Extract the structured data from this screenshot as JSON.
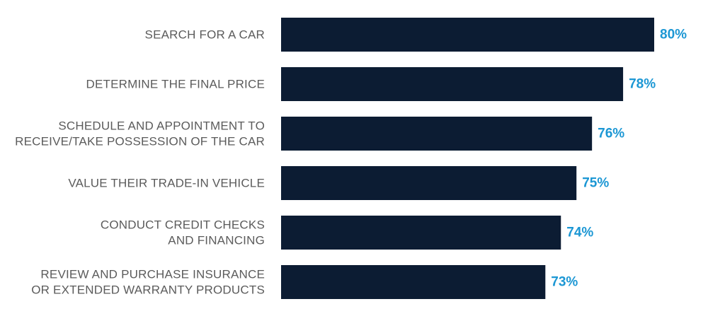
{
  "colors": {
    "bar": "#0c1c33",
    "value_label": "#1c97d4",
    "category_label": "#5b5b5b",
    "background": "#ffffff"
  },
  "chart_data": {
    "type": "bar",
    "orientation": "horizontal",
    "categories": [
      [
        "SEARCH FOR A CAR"
      ],
      [
        "DETERMINE THE FINAL PRICE"
      ],
      [
        "SCHEDULE AND APPOINTMENT TO",
        "RECEIVE/TAKE POSSESSION OF THE CAR"
      ],
      [
        "VALUE THEIR TRADE-IN VEHICLE"
      ],
      [
        "CONDUCT CREDIT CHECKS",
        "AND FINANCING"
      ],
      [
        "REVIEW AND PURCHASE INSURANCE",
        "OR EXTENDED WARRANTY PRODUCTS"
      ]
    ],
    "values": [
      80,
      78,
      76,
      75,
      74,
      73
    ],
    "value_labels": [
      "80%",
      "78%",
      "76%",
      "75%",
      "74%",
      "73%"
    ],
    "unit": "%",
    "xlim": [
      56,
      80
    ],
    "grid": false,
    "legend": "none"
  }
}
